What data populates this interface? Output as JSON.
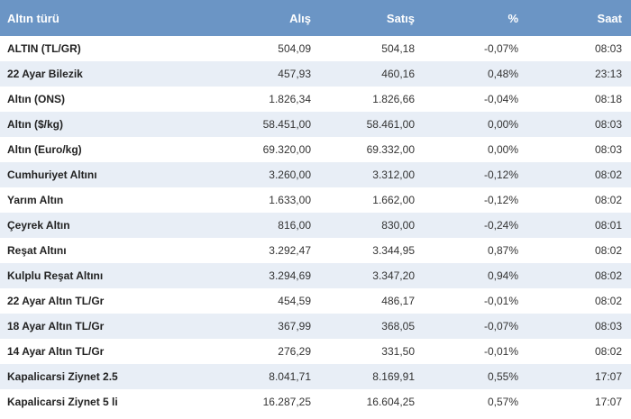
{
  "columns": {
    "type": "Altın türü",
    "buy": "Alış",
    "sell": "Satış",
    "change": "%",
    "time": "Saat"
  },
  "rows": [
    {
      "name": "ALTIN (TL/GR)",
      "buy": "504,09",
      "sell": "504,18",
      "change": "-0,07%",
      "time": "08:03"
    },
    {
      "name": "22 Ayar Bilezik",
      "buy": "457,93",
      "sell": "460,16",
      "change": "0,48%",
      "time": "23:13"
    },
    {
      "name": "Altın (ONS)",
      "buy": "1.826,34",
      "sell": "1.826,66",
      "change": "-0,04%",
      "time": "08:18"
    },
    {
      "name": "Altın ($/kg)",
      "buy": "58.451,00",
      "sell": "58.461,00",
      "change": "0,00%",
      "time": "08:03"
    },
    {
      "name": "Altın (Euro/kg)",
      "buy": "69.320,00",
      "sell": "69.332,00",
      "change": "0,00%",
      "time": "08:03"
    },
    {
      "name": "Cumhuriyet Altını",
      "buy": "3.260,00",
      "sell": "3.312,00",
      "change": "-0,12%",
      "time": "08:02"
    },
    {
      "name": "Yarım Altın",
      "buy": "1.633,00",
      "sell": "1.662,00",
      "change": "-0,12%",
      "time": "08:02"
    },
    {
      "name": "Çeyrek Altın",
      "buy": "816,00",
      "sell": "830,00",
      "change": "-0,24%",
      "time": "08:01"
    },
    {
      "name": "Reşat Altını",
      "buy": "3.292,47",
      "sell": "3.344,95",
      "change": "0,87%",
      "time": "08:02"
    },
    {
      "name": "Kulplu Reşat Altını",
      "buy": "3.294,69",
      "sell": "3.347,20",
      "change": "0,94%",
      "time": "08:02"
    },
    {
      "name": "22 Ayar Altın TL/Gr",
      "buy": "454,59",
      "sell": "486,17",
      "change": "-0,01%",
      "time": "08:02"
    },
    {
      "name": "18 Ayar Altın TL/Gr",
      "buy": "367,99",
      "sell": "368,05",
      "change": "-0,07%",
      "time": "08:03"
    },
    {
      "name": "14 Ayar Altın TL/Gr",
      "buy": "276,29",
      "sell": "331,50",
      "change": "-0,01%",
      "time": "08:02"
    },
    {
      "name": "Kapalicarsi Ziynet 2.5",
      "buy": "8.041,71",
      "sell": "8.169,91",
      "change": "0,55%",
      "time": "17:07"
    },
    {
      "name": "Kapalicarsi Ziynet 5 li",
      "buy": "16.287,25",
      "sell": "16.604,25",
      "change": "0,57%",
      "time": "17:07"
    }
  ],
  "colors": {
    "header_bg": "#6b95c5",
    "header_text": "#ffffff",
    "row_alt_bg": "#e8eef6"
  }
}
